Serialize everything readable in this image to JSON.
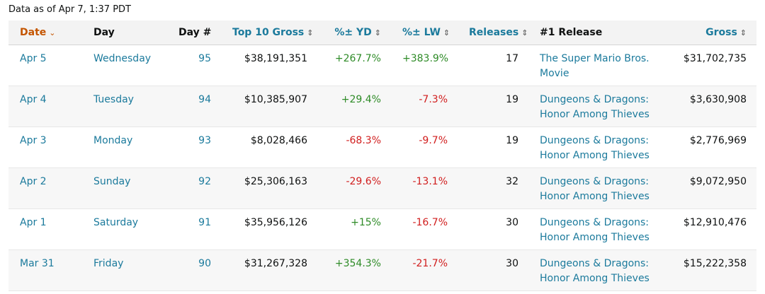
{
  "as_of": "Data as of Apr 7, 1:37 PDT",
  "headers": {
    "date": "Date",
    "day": "Day",
    "day_num": "Day #",
    "top10": "Top 10 Gross",
    "yd": "%± YD",
    "lw": "%± LW",
    "releases": "Releases",
    "release1": "#1 Release",
    "gross": "Gross"
  },
  "icons": {
    "sort_desc": "chevron-down-icon",
    "sortable": "sort-arrows-icon"
  },
  "colors": {
    "link": "#1b7a9c",
    "sorted_header": "#c45500",
    "positive": "#2e8b27",
    "negative": "#d11e1e"
  },
  "rows": [
    {
      "date": "Apr 5",
      "day": "Wednesday",
      "day_num": "95",
      "top10": "$38,191,351",
      "yd": "+267.7%",
      "lw": "+383.9%",
      "releases": "17",
      "release": "The Super Mario Bros. Movie",
      "gross": "$31,702,735"
    },
    {
      "date": "Apr 4",
      "day": "Tuesday",
      "day_num": "94",
      "top10": "$10,385,907",
      "yd": "+29.4%",
      "lw": "-7.3%",
      "releases": "19",
      "release": "Dungeons & Dragons: Honor Among Thieves",
      "gross": "$3,630,908"
    },
    {
      "date": "Apr 3",
      "day": "Monday",
      "day_num": "93",
      "top10": "$8,028,466",
      "yd": "-68.3%",
      "lw": "-9.7%",
      "releases": "19",
      "release": "Dungeons & Dragons: Honor Among Thieves",
      "gross": "$2,776,969"
    },
    {
      "date": "Apr 2",
      "day": "Sunday",
      "day_num": "92",
      "top10": "$25,306,163",
      "yd": "-29.6%",
      "lw": "-13.1%",
      "releases": "32",
      "release": "Dungeons & Dragons: Honor Among Thieves",
      "gross": "$9,072,950"
    },
    {
      "date": "Apr 1",
      "day": "Saturday",
      "day_num": "91",
      "top10": "$35,956,126",
      "yd": "+15%",
      "lw": "-16.7%",
      "releases": "30",
      "release": "Dungeons & Dragons: Honor Among Thieves",
      "gross": "$12,910,476"
    },
    {
      "date": "Mar 31",
      "day": "Friday",
      "day_num": "90",
      "top10": "$31,267,328",
      "yd": "+354.3%",
      "lw": "-21.7%",
      "releases": "30",
      "release": "Dungeons & Dragons: Honor Among Thieves",
      "gross": "$15,222,358"
    }
  ]
}
